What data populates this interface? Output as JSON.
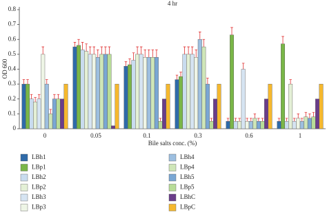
{
  "chart_data": {
    "type": "bar",
    "title": "4 hr",
    "x_label": "Bile salts conc. (%)",
    "y_label": "OD 600",
    "categories": [
      "0",
      "0.05",
      "0.1",
      "0.3",
      "0.6",
      "1"
    ],
    "ylim": [
      0,
      0.8
    ],
    "yticks": [
      0,
      0.1,
      0.2,
      0.3,
      0.4,
      0.5,
      0.6,
      0.7,
      0.8
    ],
    "series": [
      {
        "name": "LBh1",
        "color": "#2f6aa8",
        "values": [
          0.3,
          0.55,
          0.42,
          0.33,
          0.05,
          0.05
        ],
        "errors": [
          0.03,
          0.03,
          0.03,
          0.03,
          0.02,
          0.02
        ]
      },
      {
        "name": "LBp1",
        "color": "#7ab648",
        "values": [
          0.3,
          0.56,
          0.43,
          0.35,
          0.63,
          0.57
        ],
        "errors": [
          0.03,
          0.04,
          0.04,
          0.03,
          0.05,
          0.05
        ]
      },
      {
        "name": "LBh2",
        "color": "#c9dcef",
        "values": [
          0.2,
          0.53,
          0.46,
          0.5,
          0.05,
          0.05
        ],
        "errors": [
          0.03,
          0.05,
          0.05,
          0.05,
          0.02,
          0.02
        ]
      },
      {
        "name": "LBp2",
        "color": "#e4f0d6",
        "values": [
          0.18,
          0.52,
          0.5,
          0.5,
          0.05,
          0.3
        ],
        "errors": [
          0.03,
          0.05,
          0.05,
          0.05,
          0.02,
          0.03
        ]
      },
      {
        "name": "LBh3",
        "color": "#d6e4f2",
        "values": [
          0.2,
          0.5,
          0.5,
          0.5,
          0.4,
          0.05
        ],
        "errors": [
          0.03,
          0.05,
          0.05,
          0.05,
          0.04,
          0.02
        ]
      },
      {
        "name": "LBp3",
        "color": "#eef5e6",
        "values": [
          0.5,
          0.5,
          0.48,
          0.48,
          0.05,
          0.07
        ],
        "errors": [
          0.05,
          0.05,
          0.05,
          0.05,
          0.02,
          0.03
        ]
      },
      {
        "name": "LBh4",
        "color": "#9dbfe0",
        "values": [
          0.3,
          0.48,
          0.48,
          0.6,
          0.05,
          0.05
        ],
        "errors": [
          0.03,
          0.05,
          0.05,
          0.05,
          0.02,
          0.02
        ]
      },
      {
        "name": "LBp4",
        "color": "#cfe6b8",
        "values": [
          0.1,
          0.5,
          0.48,
          0.55,
          0.07,
          0.08
        ],
        "errors": [
          0.03,
          0.05,
          0.05,
          0.05,
          0.03,
          0.03
        ]
      },
      {
        "name": "LBh5",
        "color": "#7aa7d4",
        "values": [
          0.2,
          0.5,
          0.48,
          0.3,
          0.05,
          0.07
        ],
        "errors": [
          0.03,
          0.05,
          0.05,
          0.04,
          0.02,
          0.03
        ]
      },
      {
        "name": "LBp5",
        "color": "#b8dc98",
        "values": [
          0.2,
          0.5,
          0.05,
          0.05,
          0.05,
          0.08
        ],
        "errors": [
          0.03,
          0.05,
          0.02,
          0.02,
          0.02,
          0.03
        ]
      },
      {
        "name": "LBhC",
        "color": "#6a3d8a",
        "values": [
          0.2,
          0.02,
          0.2,
          0.2,
          0.2,
          0.2
        ]
      },
      {
        "name": "LBpC",
        "color": "#f5b82e",
        "values": [
          0.3,
          0.3,
          0.3,
          0.3,
          0.3,
          0.3
        ]
      }
    ]
  }
}
